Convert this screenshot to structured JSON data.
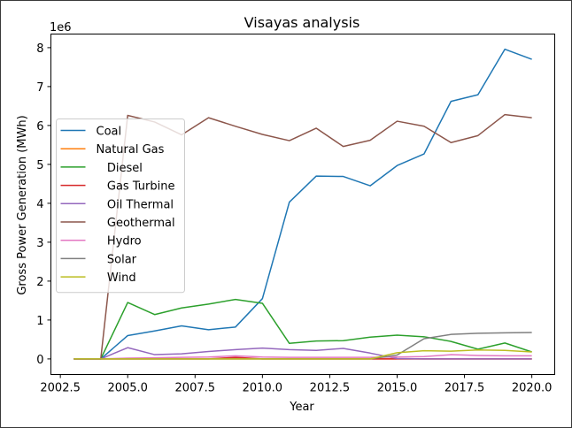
{
  "chart_data": {
    "type": "line",
    "title": "Visayas analysis",
    "xlabel": "Year",
    "ylabel": "Gross Power Generation (MWh)",
    "offset_label": "1e6",
    "xlim": [
      2002.15,
      2020.85
    ],
    "ylim": [
      -400000,
      8350000
    ],
    "x_ticks": [
      2002.5,
      2005.0,
      2007.5,
      2010.0,
      2012.5,
      2015.0,
      2017.5,
      2020.0
    ],
    "x_tick_labels": [
      "2002.5",
      "2005.0",
      "2007.5",
      "2010.0",
      "2012.5",
      "2015.0",
      "2017.5",
      "2020.0"
    ],
    "y_ticks": [
      0,
      1000000,
      2000000,
      3000000,
      4000000,
      5000000,
      6000000,
      7000000,
      8000000
    ],
    "y_tick_labels": [
      "0",
      "1",
      "2",
      "3",
      "4",
      "5",
      "6",
      "7",
      "8"
    ],
    "grid": false,
    "legend_position": "center-left",
    "x": [
      2003,
      2004,
      2005,
      2006,
      2007,
      2008,
      2009,
      2010,
      2011,
      2012,
      2013,
      2014,
      2015,
      2016,
      2017,
      2018,
      2019,
      2020
    ],
    "series": [
      {
        "name": "Coal",
        "color": "#1f77b4",
        "values": [
          0,
          0,
          600000,
          720000,
          850000,
          750000,
          820000,
          1550000,
          4030000,
          4700000,
          4690000,
          4450000,
          4970000,
          5270000,
          6620000,
          6790000,
          7960000,
          7700000
        ]
      },
      {
        "name": "Natural Gas",
        "color": "#ff7f0e",
        "values": [
          0,
          0,
          0,
          0,
          0,
          0,
          0,
          0,
          0,
          0,
          0,
          0,
          0,
          0,
          0,
          0,
          0,
          0
        ]
      },
      {
        "name": "   Diesel",
        "color": "#2ca02c",
        "values": [
          0,
          0,
          1450000,
          1140000,
          1310000,
          1410000,
          1530000,
          1430000,
          400000,
          460000,
          470000,
          560000,
          610000,
          570000,
          450000,
          250000,
          410000,
          180000
        ]
      },
      {
        "name": "   Gas Turbine",
        "color": "#d62728",
        "values": [
          0,
          0,
          0,
          0,
          0,
          0,
          40000,
          0,
          0,
          0,
          0,
          0,
          0,
          0,
          0,
          0,
          0,
          0
        ]
      },
      {
        "name": "   Oil Thermal",
        "color": "#9467bd",
        "values": [
          0,
          0,
          290000,
          110000,
          130000,
          190000,
          240000,
          280000,
          240000,
          220000,
          270000,
          150000,
          10000,
          0,
          0,
          0,
          0,
          0
        ]
      },
      {
        "name": "   Geothermal",
        "color": "#8c564b",
        "values": [
          0,
          0,
          6260000,
          6090000,
          5760000,
          6200000,
          5980000,
          5770000,
          5610000,
          5930000,
          5460000,
          5620000,
          6110000,
          5980000,
          5560000,
          5740000,
          6280000,
          6200000
        ]
      },
      {
        "name": "   Hydro",
        "color": "#e377c2",
        "values": [
          0,
          0,
          20000,
          30000,
          40000,
          50000,
          80000,
          50000,
          40000,
          40000,
          40000,
          40000,
          50000,
          60000,
          110000,
          90000,
          80000,
          80000
        ]
      },
      {
        "name": "   Solar",
        "color": "#7f7f7f",
        "values": [
          0,
          0,
          0,
          0,
          0,
          0,
          0,
          0,
          0,
          0,
          0,
          0,
          100000,
          520000,
          630000,
          660000,
          670000,
          680000
        ]
      },
      {
        "name": "   Wind",
        "color": "#bcbd22",
        "values": [
          0,
          0,
          0,
          0,
          0,
          0,
          0,
          0,
          0,
          0,
          0,
          0,
          160000,
          210000,
          200000,
          230000,
          220000,
          180000
        ]
      }
    ]
  }
}
